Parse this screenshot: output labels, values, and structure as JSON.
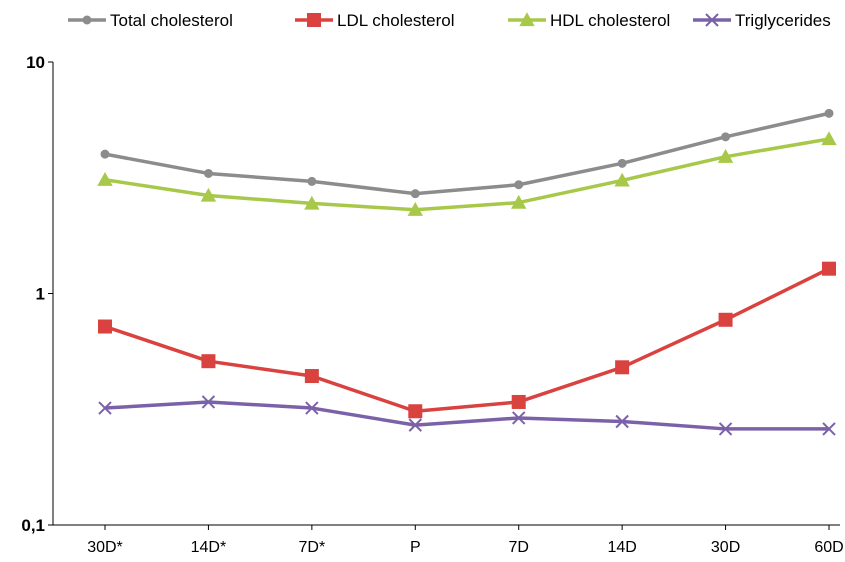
{
  "chart_data": {
    "type": "line",
    "categories": [
      "30D*",
      "14D*",
      "7D*",
      "P",
      "7D",
      "14D",
      "30D",
      "60D"
    ],
    "y_scale": "log",
    "ylim": [
      0.1,
      10
    ],
    "y_ticks": [
      {
        "value": 10,
        "label": "10"
      },
      {
        "value": 1,
        "label": "1"
      },
      {
        "value": 0.1,
        "label": "0,1"
      }
    ],
    "grid": false,
    "legend_position": "top",
    "series": [
      {
        "name": "Total cholesterol",
        "color": "#8c8c8c",
        "marker": "circle",
        "values": [
          4.0,
          3.3,
          3.05,
          2.7,
          2.95,
          3.65,
          4.75,
          6.0
        ]
      },
      {
        "name": "LDL cholesterol",
        "color": "#d9423f",
        "marker": "square",
        "values": [
          0.72,
          0.51,
          0.44,
          0.31,
          0.34,
          0.48,
          0.77,
          1.28
        ]
      },
      {
        "name": "HDL cholesterol",
        "color": "#a8c84a",
        "marker": "triangle",
        "values": [
          3.1,
          2.65,
          2.45,
          2.3,
          2.47,
          3.08,
          3.9,
          4.65
        ]
      },
      {
        "name": "Triglycerides",
        "color": "#7b62a8",
        "marker": "x",
        "values": [
          0.32,
          0.34,
          0.32,
          0.27,
          0.29,
          0.28,
          0.26,
          0.26
        ]
      }
    ]
  }
}
